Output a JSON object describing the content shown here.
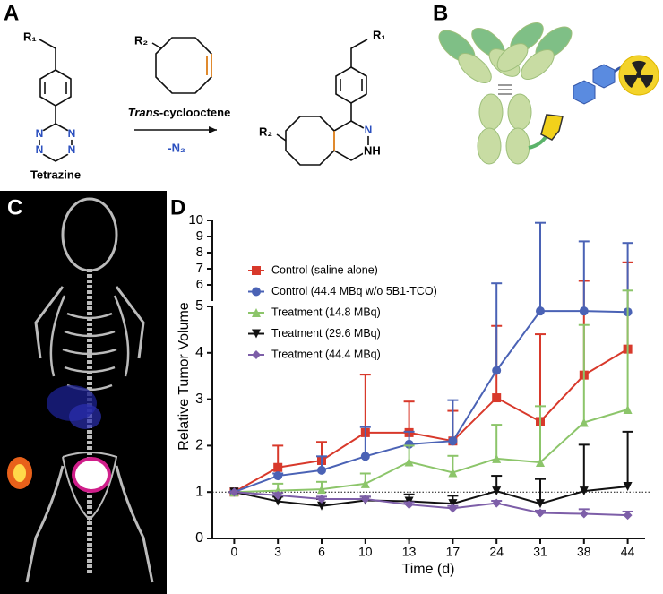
{
  "panels": {
    "a": {
      "label": "A",
      "r1": [
        "R₁",
        "R₁"
      ],
      "r2": [
        "R₂",
        "R₂"
      ],
      "tetrazine_atoms": [
        "N",
        "N",
        "N",
        "N"
      ],
      "product_atoms": [
        "N",
        "NH"
      ],
      "reagent_name": [
        "Trans",
        "-cyclooctene"
      ],
      "byproduct": "-N₂",
      "reactant_name": "Tetrazine"
    },
    "b": {
      "label": "B"
    },
    "c": {
      "label": "C"
    }
  },
  "chart_data": {
    "panel_label": "D",
    "type": "line",
    "xlabel": "Time (d)",
    "ylabel": "Relative Tumor Volume",
    "categories": [
      "0",
      "3",
      "6",
      "10",
      "13",
      "17",
      "24",
      "31",
      "38",
      "44"
    ],
    "ylim": [
      0,
      10
    ],
    "ybreak": 5,
    "yticks": [
      0,
      1,
      2,
      3,
      4,
      5,
      6,
      7,
      8,
      9,
      10
    ],
    "reference_line": 1,
    "legend": "upper left",
    "series": [
      {
        "name": "Control (saline alone)",
        "color": "#d8392b",
        "marker": "square",
        "values": [
          1.0,
          1.53,
          1.68,
          2.28,
          2.28,
          2.1,
          3.03,
          2.52,
          3.52,
          4.08
        ],
        "errors": [
          0,
          0.47,
          0.4,
          1.25,
          0.67,
          0.65,
          1.55,
          1.88,
          2.73,
          3.32
        ]
      },
      {
        "name": "Control (44.4 MBq w/o 5B1-TCO)",
        "color": "#4a62b5",
        "marker": "circle",
        "values": [
          1.0,
          1.35,
          1.47,
          1.77,
          2.03,
          2.1,
          3.62,
          4.9,
          4.9,
          4.88
        ],
        "errors": [
          0,
          0.05,
          0.3,
          0.63,
          0.27,
          0.88,
          2.48,
          4.95,
          3.8,
          3.72
        ]
      },
      {
        "name": "Treatment (14.8 MBq)",
        "color": "#8cc56a",
        "marker": "triangle",
        "values": [
          1.0,
          1.03,
          1.06,
          1.18,
          1.65,
          1.42,
          1.72,
          1.64,
          2.5,
          2.78
        ],
        "errors": [
          0,
          0.15,
          0.16,
          0.22,
          0.35,
          0.36,
          0.73,
          1.21,
          2.1,
          2.87
        ]
      },
      {
        "name": "Treatment (29.6 MBq)",
        "color": "#111111",
        "marker": "triangle-down",
        "values": [
          1.0,
          0.8,
          0.7,
          0.82,
          0.8,
          0.75,
          1.02,
          0.75,
          1.02,
          1.12
        ],
        "errors": [
          0,
          0.1,
          0.15,
          0.08,
          0.15,
          0.17,
          0.33,
          0.53,
          1.0,
          1.18
        ]
      },
      {
        "name": "Treatment (44.4 MBq)",
        "color": "#7d5ea8",
        "marker": "diamond",
        "values": [
          1.0,
          0.93,
          0.85,
          0.85,
          0.73,
          0.65,
          0.76,
          0.55,
          0.53,
          0.5
        ],
        "errors": [
          0,
          0.05,
          0.05,
          0.05,
          0.05,
          0.05,
          0.05,
          0.05,
          0.1,
          0.08
        ]
      }
    ]
  }
}
